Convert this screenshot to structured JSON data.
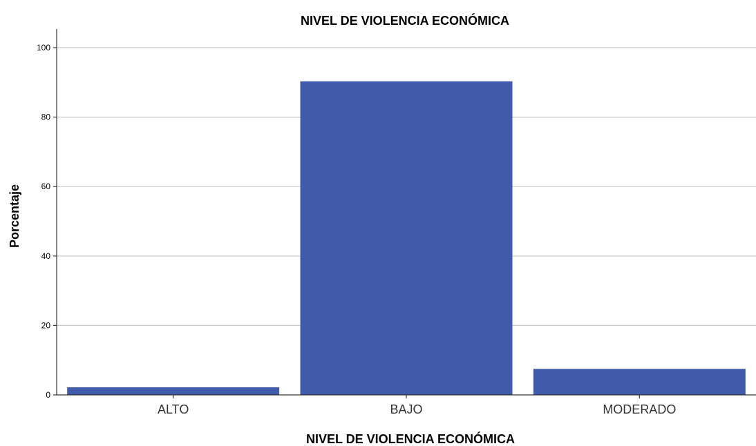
{
  "chart_data": {
    "type": "bar",
    "title": "NIVEL DE VIOLENCIA ECONÓMICA",
    "xlabel": "NIVEL DE VIOLENCIA ECONÓMICA",
    "ylabel": "Porcentaje",
    "categories": [
      "ALTO",
      "BAJO",
      "MODERADO"
    ],
    "values": [
      2.2,
      90.3,
      7.5
    ],
    "ylim": [
      0,
      105
    ],
    "yticks": [
      "0",
      "20",
      "40",
      "60",
      "80",
      "100"
    ],
    "grid": true,
    "bar_color": "#3f5ba9"
  }
}
